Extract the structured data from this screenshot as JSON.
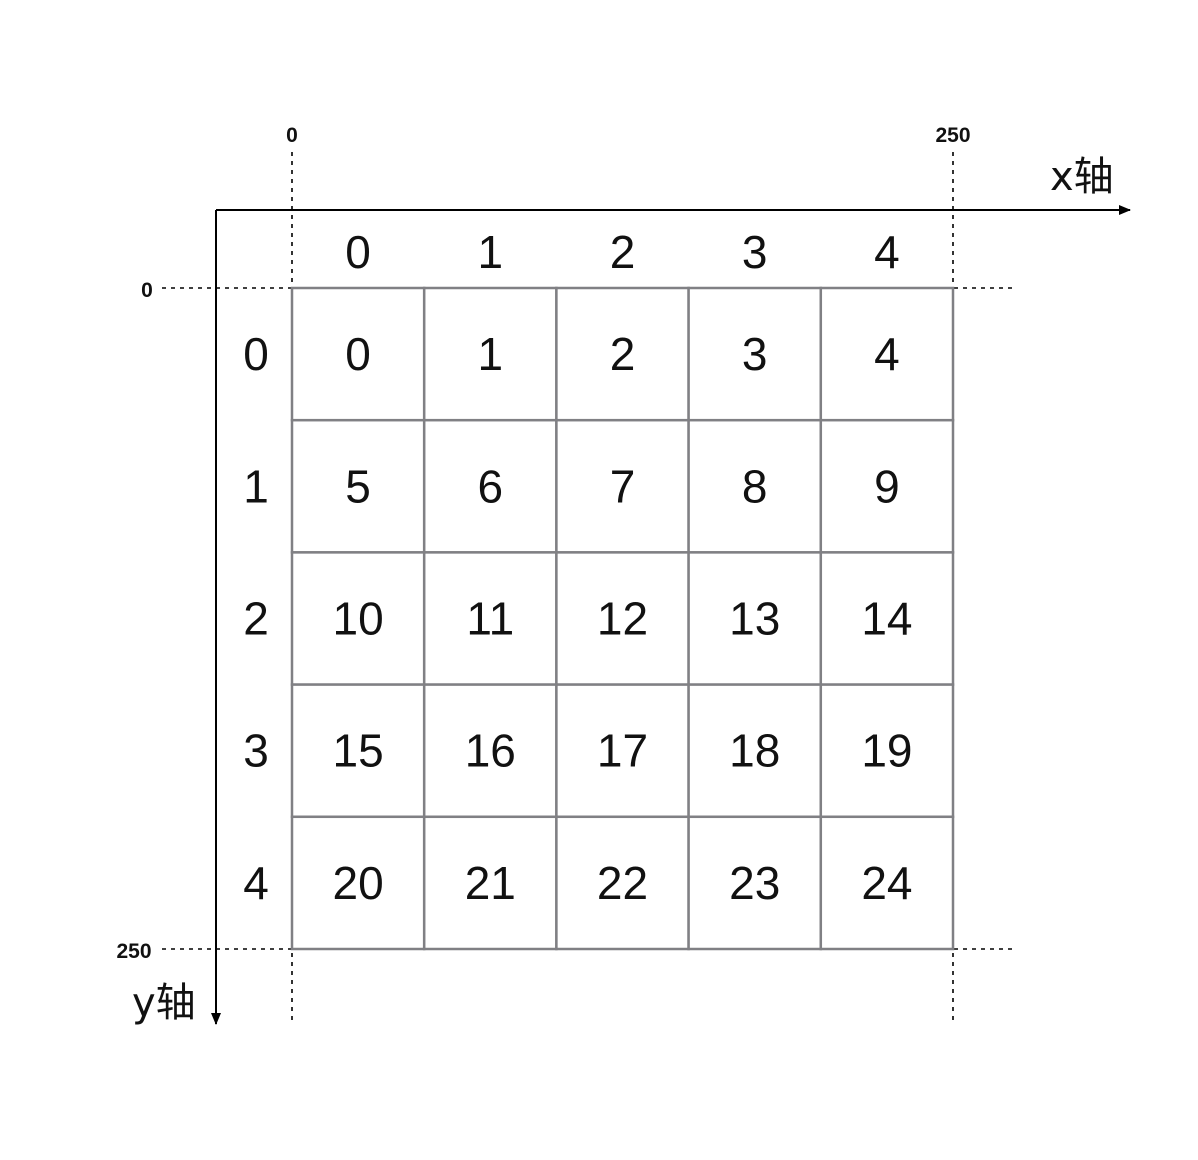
{
  "axes": {
    "x_label": "x轴",
    "y_label": "y轴"
  },
  "coordinates": {
    "x_start": "0",
    "x_end": "250",
    "y_start": "0",
    "y_end": "250"
  },
  "grid": {
    "col_headers": [
      "0",
      "1",
      "2",
      "3",
      "4"
    ],
    "row_headers": [
      "0",
      "1",
      "2",
      "3",
      "4"
    ],
    "cells": [
      [
        "0",
        "1",
        "2",
        "3",
        "4"
      ],
      [
        "5",
        "6",
        "7",
        "8",
        "9"
      ],
      [
        "10",
        "11",
        "12",
        "13",
        "14"
      ],
      [
        "15",
        "16",
        "17",
        "18",
        "19"
      ],
      [
        "20",
        "21",
        "22",
        "23",
        "24"
      ]
    ]
  },
  "colors": {
    "grid_line": "#808084",
    "axis_line": "#000000",
    "text": "#111111"
  }
}
